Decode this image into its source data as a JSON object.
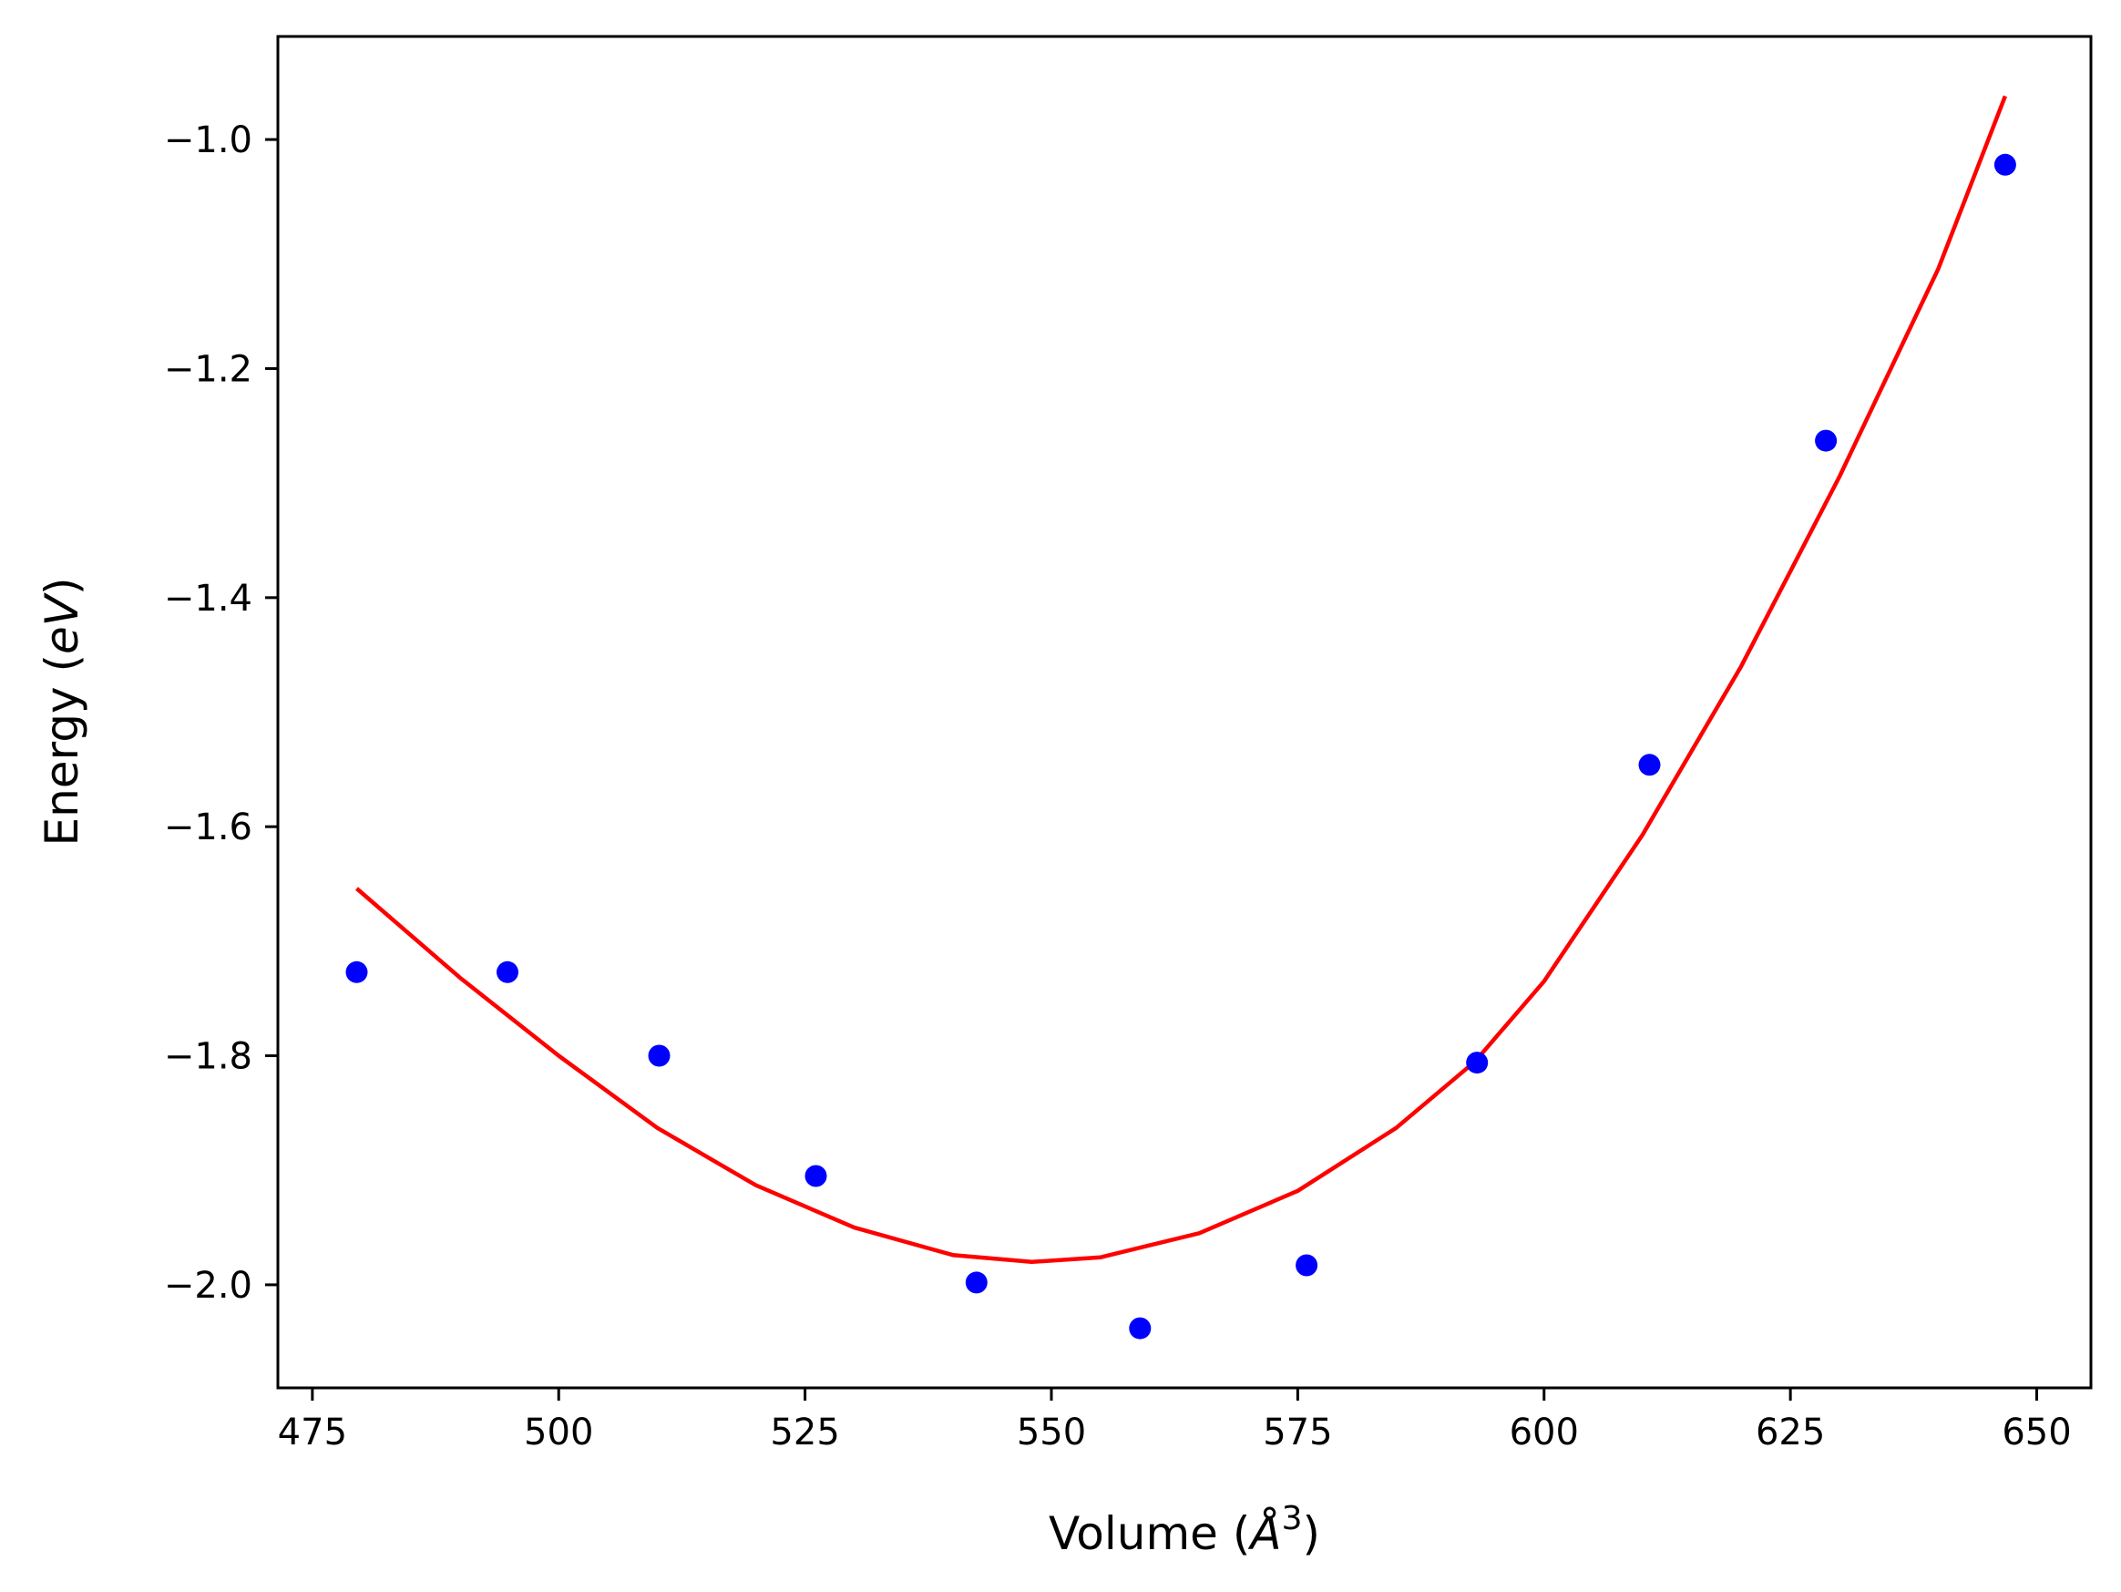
{
  "chart_data": {
    "type": "scatter",
    "title": "",
    "xlabel_main": "Volume (",
    "xlabel_unit": "Å",
    "xlabel_power": "3",
    "xlabel_close": ")",
    "ylabel_main": "Energy (",
    "ylabel_unit": "eV",
    "ylabel_close": ")",
    "xlim": [
      471.5,
      655.5
    ],
    "ylim": [
      -2.09,
      -0.91
    ],
    "x_ticks": [
      475,
      500,
      525,
      550,
      575,
      600,
      625,
      650
    ],
    "x_tick_labels": [
      "475",
      "500",
      "525",
      "550",
      "575",
      "600",
      "625",
      "650"
    ],
    "y_ticks": [
      -1.0,
      -1.2,
      -1.4,
      -1.6,
      -1.8,
      -2.0
    ],
    "y_tick_labels": [
      "−1.0",
      "−1.2",
      "−1.4",
      "−1.6",
      "−1.8",
      "−2.0"
    ],
    "grid": false,
    "legend": "none",
    "series": [
      {
        "kind": "points",
        "color": "#0000ff",
        "x": [
          479.5,
          494.8,
          510.2,
          526.1,
          542.4,
          559.0,
          575.9,
          593.2,
          610.7,
          628.6,
          646.8
        ],
        "y": [
          -1.727,
          -1.727,
          -1.8,
          -1.905,
          -1.998,
          -2.038,
          -1.983,
          -1.806,
          -1.546,
          -1.263,
          -1.022
        ]
      },
      {
        "kind": "fit-curve",
        "color": "#ff0000",
        "x": [
          479.5,
          490,
          500,
          510,
          520,
          530,
          540,
          548,
          555,
          565,
          575,
          585,
          593,
          600,
          610,
          620,
          630,
          640,
          646.8
        ],
        "y": [
          -1.654,
          -1.732,
          -1.8,
          -1.863,
          -1.913,
          -1.95,
          -1.974,
          -1.98,
          -1.976,
          -1.955,
          -1.918,
          -1.863,
          -1.805,
          -1.735,
          -1.607,
          -1.46,
          -1.294,
          -1.113,
          -0.962
        ]
      }
    ]
  }
}
